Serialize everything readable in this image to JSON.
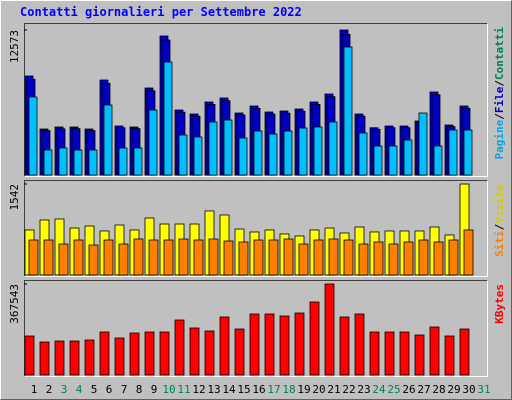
{
  "chart_data": [
    {
      "type": "bar",
      "title": "Contatti giornalieri per Settembre 2022",
      "legend_separator": "/",
      "ylim": [
        0,
        12573
      ],
      "yticks": [
        12573
      ],
      "series": [
        {
          "name": "Contatti",
          "color": "#0000e0",
          "label_color": "#00805c",
          "values": [
            8584,
            3989,
            4162,
            4162,
            3989,
            8237,
            4249,
            4162,
            7544,
            12053,
            5636,
            5289,
            6330,
            6677,
            5376,
            5983,
            5463,
            5549,
            5723,
            6330,
            7024,
            12573,
            5289,
            4100,
            4249,
            4249,
            4682,
            7197,
            4336,
            5983,
            null
          ]
        },
        {
          "name": "File",
          "color": "#0000c0",
          "label_color": "#0000c0",
          "values": [
            8300,
            3850,
            4000,
            4020,
            3850,
            7950,
            4100,
            4020,
            7300,
            11700,
            5450,
            5100,
            6120,
            6450,
            5200,
            5780,
            5280,
            5360,
            5530,
            6120,
            6790,
            12200,
            5100,
            3960,
            4100,
            4100,
            4520,
            6960,
            4190,
            5780,
            null
          ]
        },
        {
          "name": "Pagine",
          "color": "#00c0ff",
          "label_color": "#00a8e8",
          "values": [
            6763,
            2168,
            2341,
            2168,
            2168,
            6070,
            2341,
            2341,
            5636,
            9798,
            3468,
            3295,
            4596,
            4769,
            3208,
            3815,
            3555,
            3815,
            4075,
            4162,
            4596,
            11099,
            3642,
            2515,
            2515,
            3035,
            5376,
            2515,
            3902,
            3902,
            null
          ]
        }
      ]
    },
    {
      "type": "bar",
      "legend_separator": "/",
      "ylim": [
        0,
        1542
      ],
      "yticks": [
        1542
      ],
      "series": [
        {
          "name": "Visite",
          "color": "#ffff00",
          "label_color": "#d8c800",
          "values": [
            763,
            932,
            949,
            796,
            830,
            746,
            847,
            763,
            966,
            864,
            864,
            864,
            1085,
            1017,
            779,
            729,
            763,
            695,
            661,
            763,
            796,
            712,
            813,
            729,
            746,
            746,
            746,
            813,
            678,
            1542,
            null
          ]
        },
        {
          "name": "Siti",
          "color": "#ff8000",
          "label_color": "#ff8000",
          "values": [
            593,
            593,
            525,
            593,
            508,
            593,
            525,
            610,
            593,
            593,
            610,
            593,
            610,
            576,
            559,
            593,
            593,
            610,
            525,
            593,
            610,
            593,
            525,
            559,
            525,
            559,
            593,
            559,
            593,
            763,
            null
          ]
        }
      ]
    },
    {
      "type": "bar",
      "ylim": [
        0,
        367543
      ],
      "yticks": [
        367543
      ],
      "categories": [
        "1",
        "2",
        "3",
        "4",
        "5",
        "6",
        "7",
        "8",
        "9",
        "10",
        "11",
        "12",
        "13",
        "14",
        "15",
        "16",
        "17",
        "18",
        "19",
        "20",
        "21",
        "22",
        "23",
        "24",
        "25",
        "26",
        "27",
        "28",
        "29",
        "30",
        "31"
      ],
      "category_colors": [
        "#000000",
        "#000000",
        "#00805c",
        "#00805c",
        "#000000",
        "#000000",
        "#000000",
        "#000000",
        "#000000",
        "#00805c",
        "#00805c",
        "#000000",
        "#000000",
        "#000000",
        "#000000",
        "#000000",
        "#00805c",
        "#00805c",
        "#000000",
        "#000000",
        "#000000",
        "#000000",
        "#000000",
        "#00805c",
        "#00805c",
        "#000000",
        "#000000",
        "#000000",
        "#000000",
        "#000000",
        "#00805c"
      ],
      "series": [
        {
          "name": "KBytes",
          "color": "#ff0000",
          "label_color": "#ff0000",
          "values": [
            157518,
            133284,
            137323,
            137323,
            141363,
            173674,
            149441,
            169635,
            173674,
            173674,
            222141,
            189829,
            177713,
            234258,
            185790,
            246374,
            246374,
            238296,
            250413,
            294842,
            367543,
            234258,
            246374,
            173674,
            173674,
            173674,
            161558,
            193869,
            157518,
            185790,
            null
          ]
        }
      ]
    }
  ]
}
